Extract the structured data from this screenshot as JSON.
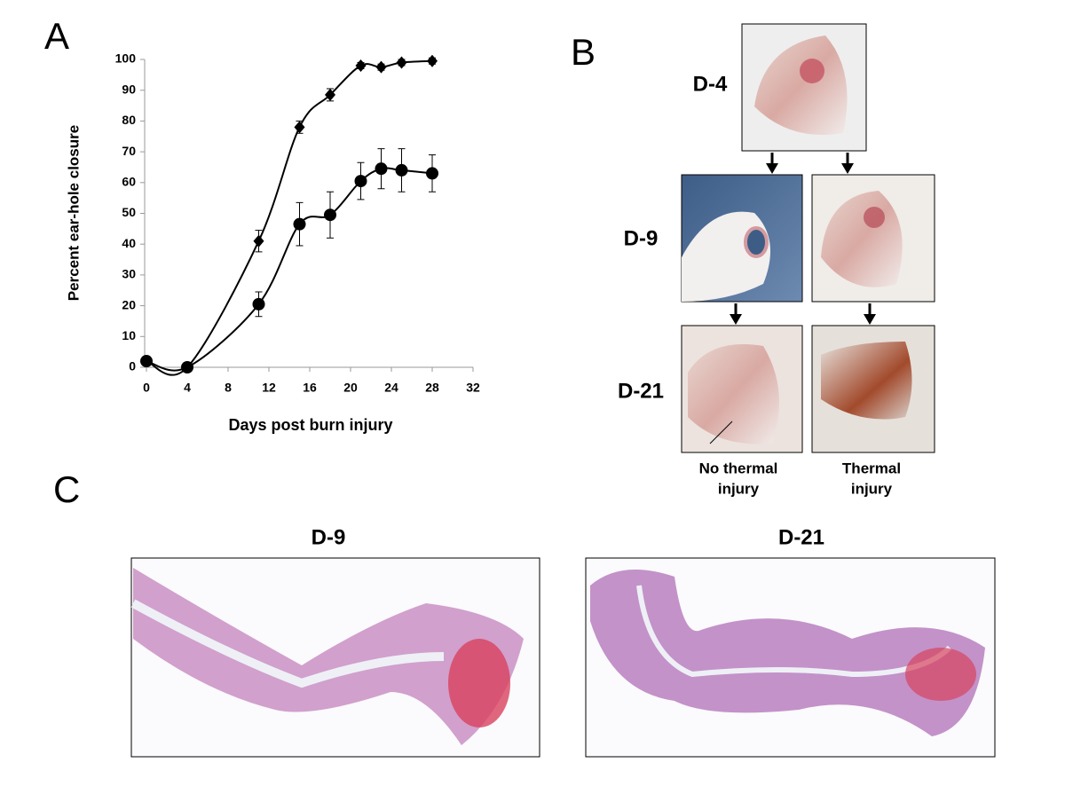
{
  "panels": {
    "a": "A",
    "b": "B",
    "c": "C"
  },
  "chart_data": {
    "type": "line",
    "xlabel": "Days post burn injury",
    "ylabel": "Percent ear-hole closure",
    "x": [
      0,
      4,
      11,
      15,
      18,
      21,
      23,
      25,
      28
    ],
    "series": [
      {
        "marker": "diamond",
        "color": "#000000",
        "values": [
          2,
          0,
          41,
          78,
          88.5,
          98,
          97.5,
          99,
          99.5
        ],
        "errors": [
          1,
          1,
          3.5,
          2,
          2,
          1,
          1,
          1,
          1
        ]
      },
      {
        "marker": "circle",
        "color": "#000000",
        "values": [
          2,
          0,
          20.5,
          46.5,
          49.5,
          60.5,
          64.5,
          64,
          63
        ],
        "errors": [
          1,
          1,
          4,
          7,
          7.5,
          6,
          6.5,
          7,
          6
        ]
      }
    ],
    "xlim": [
      0,
      32
    ],
    "xticks": [
      0,
      4,
      8,
      12,
      16,
      20,
      24,
      28,
      32
    ],
    "ylim": [
      0,
      100
    ],
    "yticks": [
      0,
      10,
      20,
      30,
      40,
      50,
      60,
      70,
      80,
      90,
      100
    ],
    "grid": false
  },
  "panel_b": {
    "rows": [
      "D-4",
      "D-9",
      "D-21"
    ],
    "captions": [
      [
        "No thermal",
        "injury"
      ],
      [
        "Thermal",
        "injury"
      ]
    ]
  },
  "panel_c": {
    "labels": [
      "D-9",
      "D-21"
    ]
  }
}
